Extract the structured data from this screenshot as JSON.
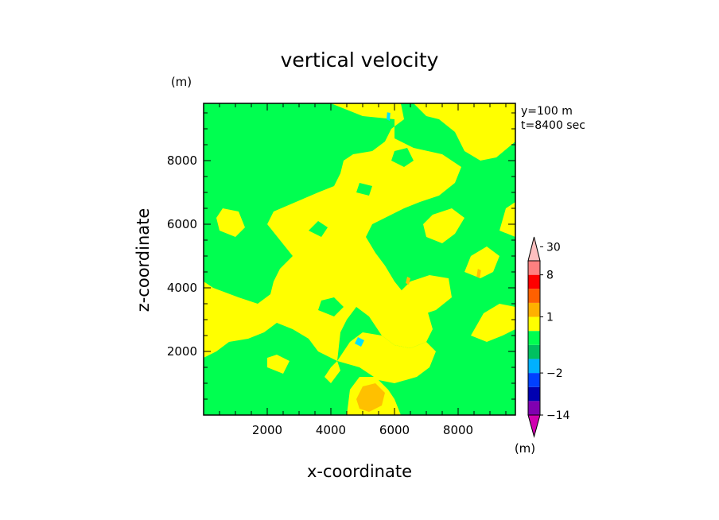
{
  "chart_data": {
    "type": "heatmap",
    "title": "vertical velocity",
    "xlabel": "x-coordinate",
    "ylabel": "z-coordinate",
    "y_unit": "(m)",
    "info_lines": [
      "y=100 m",
      "t=8400 sec"
    ],
    "xlim": [
      0,
      9800
    ],
    "ylim": [
      0,
      9800
    ],
    "x_ticks": [
      2000,
      4000,
      6000,
      8000
    ],
    "y_ticks": [
      2000,
      4000,
      6000,
      8000
    ],
    "colorbar": {
      "unit": "(m)",
      "labels": [
        "30",
        "8",
        "1",
        "-2",
        "-14"
      ],
      "label_levels": [
        30,
        8,
        1,
        -2,
        -14
      ],
      "levels": [
        -20,
        -14,
        -8,
        -4,
        -2,
        -1,
        -0.5,
        0.5,
        1,
        2,
        4,
        8,
        16,
        30
      ],
      "colors": [
        "#d000b0",
        "#8000b0",
        "#0000b0",
        "#0040ff",
        "#00b0ff",
        "#00c060",
        "#00ff50",
        "#ffff00",
        "#ffb000",
        "#ff6000",
        "#ff0000",
        "#ff8080",
        "#ffc0c0"
      ]
    },
    "field_colors": {
      "positive": "#ffff00",
      "zero": "#00ff50",
      "updraft": "#ffc000",
      "downdraft": "#00e0ff"
    },
    "regions": [
      {
        "w": "positive",
        "points": [
          [
            4000,
            9800
          ],
          [
            6200,
            9800
          ],
          [
            6300,
            9300
          ],
          [
            5900,
            9000
          ],
          [
            5700,
            8600
          ],
          [
            5300,
            8300
          ],
          [
            4700,
            8200
          ],
          [
            4400,
            8000
          ],
          [
            4300,
            7600
          ],
          [
            4100,
            7200
          ],
          [
            3600,
            7000
          ],
          [
            2900,
            6700
          ],
          [
            2200,
            6400
          ],
          [
            2000,
            6000
          ],
          [
            2400,
            5500
          ],
          [
            2800,
            5000
          ],
          [
            2400,
            4600
          ],
          [
            2200,
            4200
          ],
          [
            2100,
            3800
          ],
          [
            1700,
            3500
          ],
          [
            1100,
            3700
          ],
          [
            300,
            4000
          ],
          [
            0,
            4200
          ],
          [
            0,
            1800
          ],
          [
            400,
            2000
          ],
          [
            800,
            2300
          ],
          [
            1400,
            2400
          ],
          [
            1900,
            2600
          ],
          [
            2300,
            2900
          ],
          [
            2800,
            2700
          ],
          [
            3300,
            2400
          ],
          [
            3600,
            2000
          ],
          [
            4200,
            1700
          ],
          [
            4300,
            2600
          ],
          [
            4500,
            3000
          ],
          [
            4800,
            3400
          ],
          [
            5200,
            3100
          ],
          [
            5600,
            2500
          ],
          [
            6000,
            2200
          ],
          [
            6500,
            2100
          ],
          [
            7000,
            2300
          ],
          [
            7200,
            2700
          ],
          [
            7000,
            3400
          ],
          [
            6400,
            3700
          ],
          [
            6000,
            4200
          ],
          [
            5700,
            4700
          ],
          [
            5400,
            5100
          ],
          [
            5100,
            5600
          ],
          [
            5300,
            6000
          ],
          [
            5700,
            6200
          ],
          [
            6300,
            6500
          ],
          [
            6800,
            6700
          ],
          [
            7400,
            6900
          ],
          [
            7900,
            7300
          ],
          [
            8100,
            7800
          ],
          [
            7500,
            8200
          ],
          [
            6600,
            8400
          ],
          [
            6000,
            8700
          ],
          [
            6000,
            9300
          ],
          [
            5000,
            9400
          ]
        ]
      },
      {
        "w": "positive",
        "points": [
          [
            6600,
            9800
          ],
          [
            9800,
            9800
          ],
          [
            9800,
            8600
          ],
          [
            9200,
            8100
          ],
          [
            8700,
            8000
          ],
          [
            8200,
            8300
          ],
          [
            7900,
            8900
          ],
          [
            7400,
            9300
          ],
          [
            7000,
            9400
          ]
        ]
      },
      {
        "w": "positive",
        "points": [
          [
            4200,
            1700
          ],
          [
            4900,
            1500
          ],
          [
            5500,
            1100
          ],
          [
            6000,
            1000
          ],
          [
            6700,
            1200
          ],
          [
            7100,
            1500
          ],
          [
            7300,
            2000
          ],
          [
            7000,
            2300
          ],
          [
            6500,
            2100
          ],
          [
            6000,
            2200
          ],
          [
            5600,
            2500
          ],
          [
            5000,
            2600
          ],
          [
            4600,
            2300
          ]
        ]
      },
      {
        "w": "positive",
        "points": [
          [
            4000,
            1000
          ],
          [
            4300,
            1400
          ],
          [
            4200,
            1700
          ],
          [
            4000,
            1500
          ],
          [
            3800,
            1200
          ]
        ]
      },
      {
        "w": "positive",
        "points": [
          [
            4500,
            0
          ],
          [
            6200,
            0
          ],
          [
            6000,
            500
          ],
          [
            5800,
            800
          ],
          [
            5400,
            1200
          ],
          [
            4900,
            1200
          ],
          [
            4600,
            800
          ]
        ]
      },
      {
        "w": "positive",
        "points": [
          [
            2000,
            1500
          ],
          [
            2500,
            1300
          ],
          [
            2700,
            1700
          ],
          [
            2300,
            1900
          ],
          [
            2000,
            1800
          ]
        ]
      },
      {
        "w": "positive",
        "points": [
          [
            7000,
            5600
          ],
          [
            7500,
            5400
          ],
          [
            7900,
            5700
          ],
          [
            8200,
            6200
          ],
          [
            7800,
            6500
          ],
          [
            7200,
            6300
          ],
          [
            6900,
            6000
          ]
        ]
      },
      {
        "w": "positive",
        "points": [
          [
            8200,
            4500
          ],
          [
            8700,
            4300
          ],
          [
            9100,
            4500
          ],
          [
            9300,
            5000
          ],
          [
            8900,
            5300
          ],
          [
            8400,
            5000
          ]
        ]
      },
      {
        "w": "positive",
        "points": [
          [
            8400,
            2500
          ],
          [
            8900,
            2300
          ],
          [
            9400,
            2500
          ],
          [
            9800,
            2700
          ],
          [
            9800,
            3400
          ],
          [
            9300,
            3500
          ],
          [
            8800,
            3200
          ]
        ]
      },
      {
        "w": "positive",
        "points": [
          [
            6200,
            3300
          ],
          [
            6700,
            3100
          ],
          [
            7300,
            3300
          ],
          [
            7800,
            3700
          ],
          [
            7700,
            4300
          ],
          [
            7100,
            4400
          ],
          [
            6500,
            4200
          ],
          [
            6100,
            3800
          ]
        ]
      },
      {
        "w": "positive",
        "points": [
          [
            500,
            5800
          ],
          [
            1000,
            5600
          ],
          [
            1300,
            5900
          ],
          [
            1100,
            6400
          ],
          [
            600,
            6500
          ],
          [
            400,
            6200
          ]
        ]
      },
      {
        "w": "positive",
        "points": [
          [
            9300,
            5800
          ],
          [
            9800,
            5600
          ],
          [
            9800,
            6700
          ],
          [
            9500,
            6500
          ]
        ]
      },
      {
        "w": "zero",
        "points": [
          [
            3500,
            8800
          ],
          [
            3900,
            8600
          ],
          [
            4100,
            8900
          ],
          [
            3800,
            9200
          ],
          [
            3500,
            9100
          ]
        ]
      },
      {
        "w": "zero",
        "points": [
          [
            5900,
            8000
          ],
          [
            6300,
            7800
          ],
          [
            6600,
            8000
          ],
          [
            6400,
            8400
          ],
          [
            6000,
            8300
          ]
        ]
      },
      {
        "w": "zero",
        "points": [
          [
            4800,
            7000
          ],
          [
            5200,
            6900
          ],
          [
            5300,
            7200
          ],
          [
            4900,
            7300
          ]
        ]
      },
      {
        "w": "zero",
        "points": [
          [
            3300,
            5800
          ],
          [
            3700,
            5600
          ],
          [
            3900,
            5900
          ],
          [
            3600,
            6100
          ]
        ]
      },
      {
        "w": "zero",
        "points": [
          [
            3600,
            3300
          ],
          [
            4100,
            3100
          ],
          [
            4400,
            3400
          ],
          [
            4100,
            3700
          ],
          [
            3700,
            3600
          ]
        ]
      },
      {
        "w": "updraft",
        "points": [
          [
            4900,
            200
          ],
          [
            5200,
            100
          ],
          [
            5600,
            300
          ],
          [
            5700,
            700
          ],
          [
            5400,
            1000
          ],
          [
            5000,
            900
          ],
          [
            4800,
            500
          ]
        ]
      },
      {
        "w": "updraft",
        "points": [
          [
            6350,
            4150
          ],
          [
            6450,
            4100
          ],
          [
            6500,
            4300
          ],
          [
            6400,
            4350
          ]
        ]
      },
      {
        "w": "updraft",
        "points": [
          [
            8580,
            4350
          ],
          [
            8680,
            4300
          ],
          [
            8720,
            4550
          ],
          [
            8620,
            4600
          ]
        ]
      },
      {
        "w": "downdraft",
        "points": [
          [
            4750,
            2250
          ],
          [
            4950,
            2150
          ],
          [
            5050,
            2350
          ],
          [
            4850,
            2450
          ]
        ]
      },
      {
        "w": "downdraft",
        "points": [
          [
            5750,
            9300
          ],
          [
            5850,
            9250
          ],
          [
            5870,
            9500
          ],
          [
            5770,
            9520
          ]
        ]
      }
    ]
  }
}
